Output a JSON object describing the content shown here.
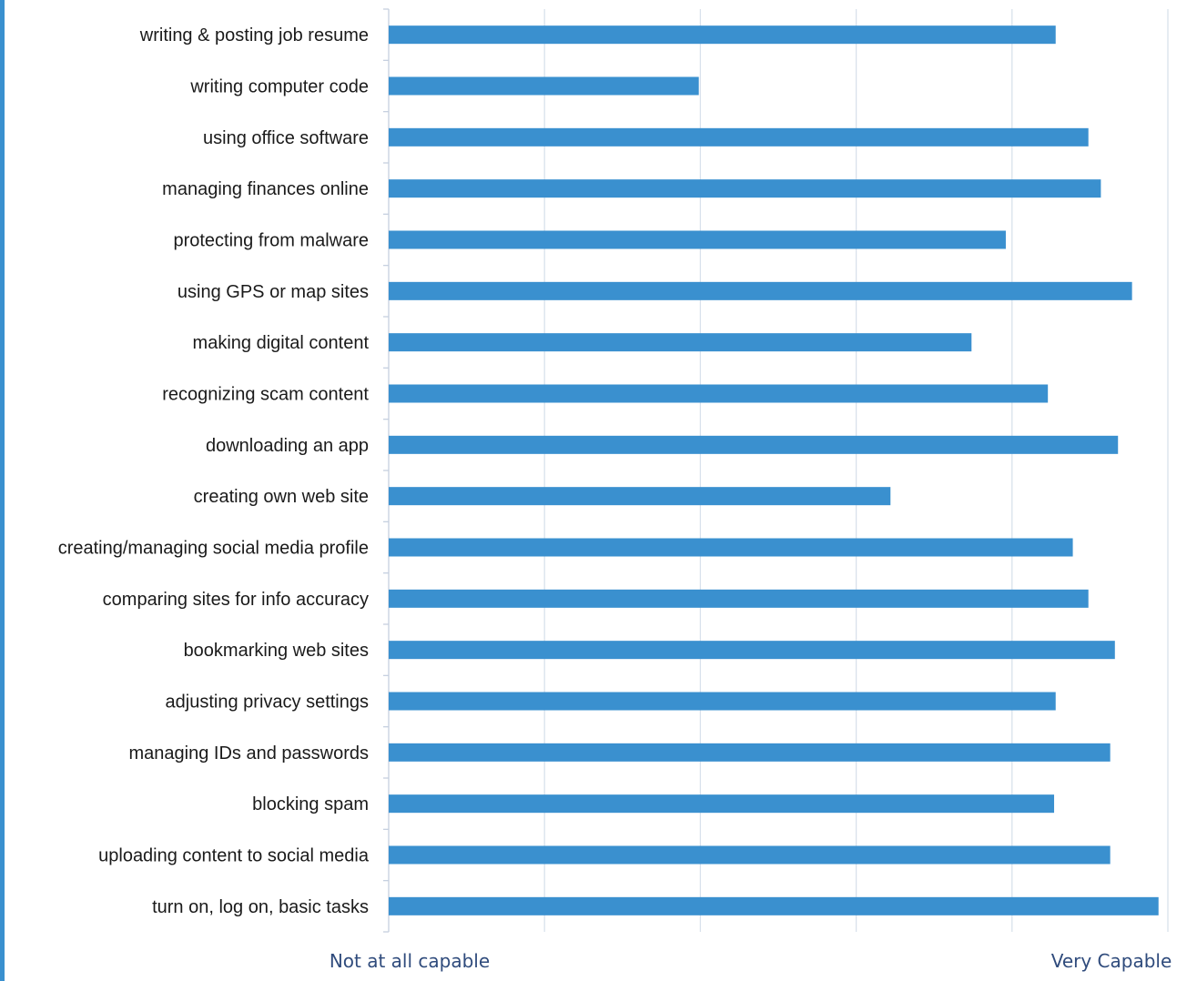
{
  "chart_data": {
    "type": "bar",
    "orientation": "horizontal",
    "categories": [
      "writing & posting job resume",
      "writing computer code",
      "using office software",
      "managing finances online",
      "protecting from malware",
      "using GPS or map sites",
      "making digital content",
      "recognizing scam content",
      "downloading an app",
      "creating own web site",
      "creating/managing social media profile",
      "comparing sites for info accuracy",
      "bookmarking web sites",
      "adjusting privacy settings",
      "managing IDs and passwords",
      "blocking spam",
      "uploading content to social media",
      "turn on, log on, basic tasks"
    ],
    "values": [
      4.28,
      1.99,
      4.49,
      4.57,
      3.96,
      4.77,
      3.74,
      4.23,
      4.68,
      3.22,
      4.39,
      4.49,
      4.66,
      4.28,
      4.63,
      4.27,
      4.63,
      4.94
    ],
    "xlim": [
      0,
      5
    ],
    "x_gridlines": [
      0,
      1,
      2,
      3,
      4,
      5
    ],
    "x_axis_end_labels": {
      "min": "Not at all capable",
      "max": "Very Capable"
    },
    "title": "",
    "xlabel": "",
    "ylabel": "",
    "grid": true,
    "legend": "none",
    "bar_color": "#3a90cf",
    "grid_color": "#d9e1ec",
    "axis_color": "#c5d0df",
    "end_label_color": "#2f4b7c"
  }
}
